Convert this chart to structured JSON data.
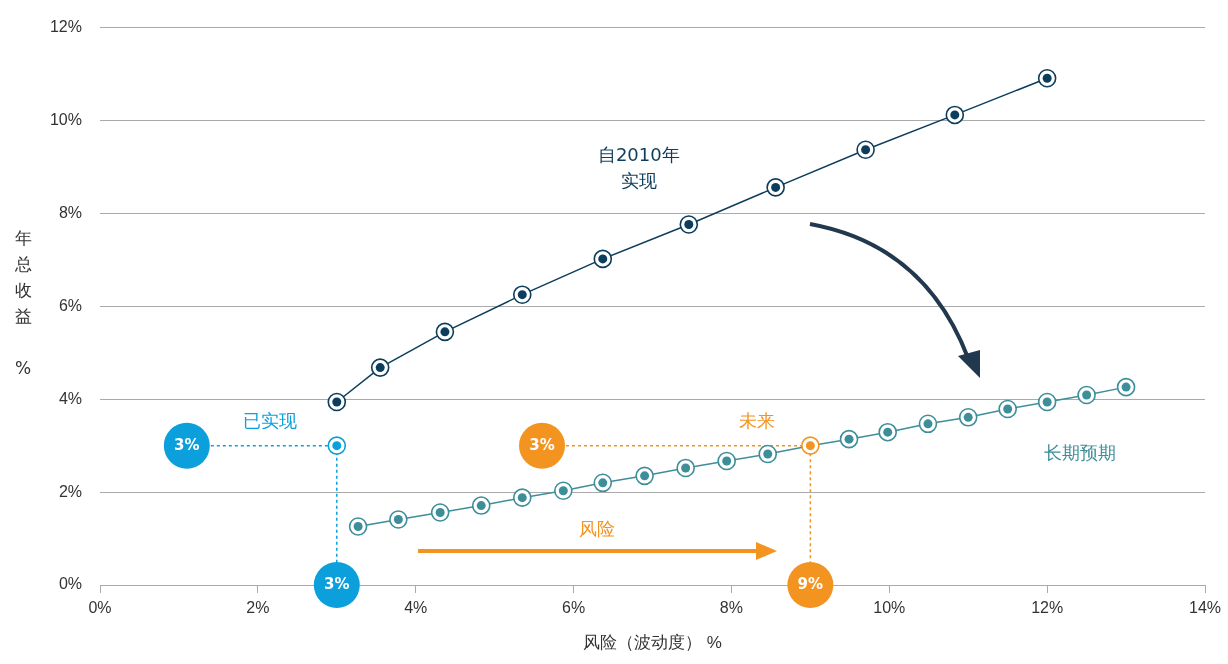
{
  "chart_data": {
    "type": "line",
    "xlabel": "风险（波动度） %",
    "ylabel": "年总收益 %",
    "xlim": [
      0,
      14
    ],
    "xticks": [
      {
        "value": 0,
        "label": "0%"
      },
      {
        "value": 2,
        "label": "2%"
      },
      {
        "value": 4,
        "label": "4%"
      },
      {
        "value": 6,
        "label": "6%"
      },
      {
        "value": 8,
        "label": "8%"
      },
      {
        "value": 10,
        "label": "10%"
      },
      {
        "value": 12,
        "label": "12%"
      },
      {
        "value": 14,
        "label": "14%"
      }
    ],
    "ylim": [
      0,
      12
    ],
    "yticks": [
      {
        "value": 0,
        "label": "0%"
      },
      {
        "value": 2,
        "label": "2%"
      },
      {
        "value": 4,
        "label": "4%"
      },
      {
        "value": 6,
        "label": "6%"
      },
      {
        "value": 8,
        "label": "8%"
      },
      {
        "value": 10,
        "label": "10%"
      },
      {
        "value": 12,
        "label": "12%"
      }
    ],
    "grid": "y",
    "legend": false,
    "marker": "circle",
    "series": [
      {
        "name": "自2010年实现",
        "color": "#0d3d5c",
        "x": [
          3.0,
          3.55,
          4.37,
          5.35,
          6.37,
          7.46,
          8.56,
          9.7,
          10.83,
          12.0
        ],
        "values": [
          3.94,
          4.68,
          5.45,
          6.25,
          7.02,
          7.76,
          8.56,
          9.37,
          10.12,
          10.91
        ]
      },
      {
        "name": "长期预期",
        "color": "#3e8e9a",
        "colors": [
          "#3e8e9a",
          "#3e8e9a",
          "#3e8e9a",
          "#3e8e9a",
          "#3e8e9a",
          "#3e8e9a",
          "#3e8e9a",
          "#3e8e9a",
          "#3e8e9a",
          "#3e8e9a",
          "#3e8e9a",
          "#f39420",
          "#3e8e9a",
          "#3e8e9a",
          "#3e8e9a",
          "#3e8e9a",
          "#3e8e9a",
          "#3e8e9a",
          "#3e8e9a",
          "#3e8e9a"
        ],
        "x": [
          3.27,
          3.78,
          4.31,
          4.83,
          5.35,
          5.87,
          6.37,
          6.9,
          7.42,
          7.94,
          8.46,
          9.0,
          9.49,
          9.98,
          10.49,
          11.0,
          11.5,
          12.0,
          12.5,
          13.0
        ],
        "values": [
          1.26,
          1.41,
          1.56,
          1.71,
          1.88,
          2.03,
          2.2,
          2.35,
          2.52,
          2.67,
          2.82,
          3.0,
          3.14,
          3.29,
          3.47,
          3.61,
          3.79,
          3.94,
          4.09,
          4.26
        ]
      },
      {
        "type": "scatter",
        "color": "#0ba0dc",
        "x": [
          3.0
        ],
        "values": [
          3.0
        ]
      },
      {
        "type": "line",
        "line_style": "dotted",
        "color": "#0ba0dc",
        "x": [
          1.1,
          3.0,
          3.0
        ],
        "values": [
          3.0,
          3.0,
          0.0
        ]
      },
      {
        "type": "line",
        "line_style": "dotted",
        "color": "#f39420",
        "x": [
          5.6,
          9.0,
          9.0
        ],
        "values": [
          3.0,
          3.0,
          0.0
        ]
      }
    ],
    "annotations": [
      {
        "text": "3%",
        "x": 1.1,
        "y": 3.0
      },
      {
        "text": "3%",
        "x": 3.0,
        "y": 0.0
      },
      {
        "text": "3%",
        "x": 5.6,
        "y": 3.0
      },
      {
        "text": "9%",
        "x": 9.0,
        "y": 0.0
      },
      "已实现",
      "未来",
      "风险"
    ]
  }
}
